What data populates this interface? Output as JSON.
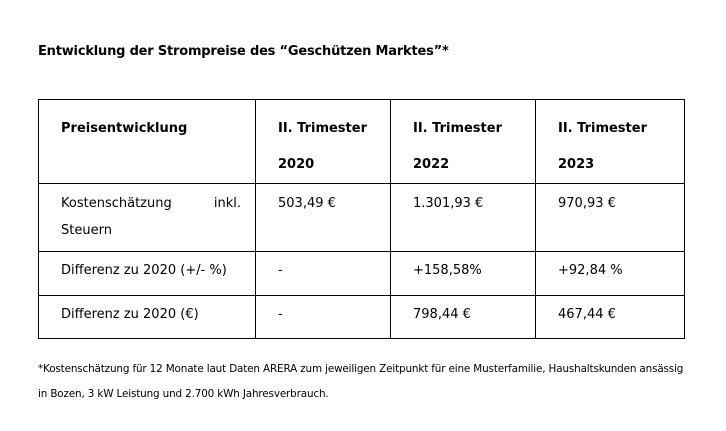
{
  "title": "Entwicklung der Strompreise des “Geschützen Marktes”*",
  "table": {
    "headers": [
      {
        "line1": "Preisentwicklung",
        "line2": ""
      },
      {
        "line1": "II. Trimester",
        "line2": "2020"
      },
      {
        "line1": "II. Trimester",
        "line2": "2022"
      },
      {
        "line1": "II. Trimester",
        "line2": "2023"
      }
    ],
    "rows": [
      {
        "label_word1": "Kostenschätzung",
        "label_word2": "inkl.",
        "label_line2": "Steuern",
        "values": [
          "503,49 €",
          "1.301,93 €",
          "970,93 €"
        ]
      },
      {
        "label": "Differenz zu 2020 (+/- %)",
        "values": [
          "-",
          "+158,58%",
          "+92,84 %"
        ]
      },
      {
        "label": "Differenz zu 2020 (€)",
        "values": [
          "-",
          "798,44 €",
          "467,44 €"
        ]
      }
    ]
  },
  "footnote": {
    "line1": "*Kostenschätzung für 12 Monate laut Daten ARERA zum jeweiligen Zeitpunkt für eine Musterfamilie, Haushaltskunden ansässig",
    "line2": "in Bozen, 3 kW Leistung und 2.700 kWh Jahresverbrauch."
  }
}
